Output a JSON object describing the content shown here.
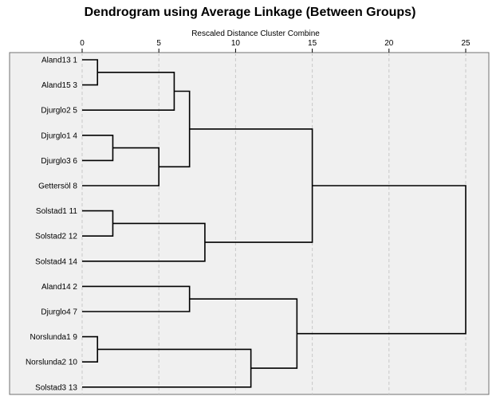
{
  "chart_data": {
    "type": "dendrogram",
    "title": "Dendrogram using Average Linkage (Between Groups)",
    "xlabel": "Rescaled Distance Cluster Combine",
    "xlim": [
      0,
      25
    ],
    "xticks": [
      0,
      5,
      10,
      15,
      20,
      25
    ],
    "grid": "vertical dashed",
    "leaves": [
      {
        "label": "Aland13",
        "case": 1
      },
      {
        "label": "Aland15",
        "case": 3
      },
      {
        "label": "Djurglo2",
        "case": 5
      },
      {
        "label": "Djurglo1",
        "case": 4
      },
      {
        "label": "Djurglo3",
        "case": 6
      },
      {
        "label": "Gettersöl",
        "case": 8
      },
      {
        "label": "Solstad1",
        "case": 11
      },
      {
        "label": "Solstad2",
        "case": 12
      },
      {
        "label": "Solstad4",
        "case": 14
      },
      {
        "label": "Aland14",
        "case": 2
      },
      {
        "label": "Djurglo4",
        "case": 7
      },
      {
        "label": "Norslunda1",
        "case": 9
      },
      {
        "label": "Norslunda2",
        "case": 10
      },
      {
        "label": "Solstad3",
        "case": 13
      }
    ],
    "merges": [
      {
        "id": "n1",
        "a": "L0",
        "b": "L1",
        "distance": 1
      },
      {
        "id": "n2",
        "a": "L11",
        "b": "L12",
        "distance": 1
      },
      {
        "id": "n3",
        "a": "L3",
        "b": "L4",
        "distance": 2
      },
      {
        "id": "n4",
        "a": "L6",
        "b": "L7",
        "distance": 2
      },
      {
        "id": "n5",
        "a": "n3",
        "b": "L5",
        "distance": 5
      },
      {
        "id": "n6",
        "a": "n1",
        "b": "L2",
        "distance": 6
      },
      {
        "id": "n7",
        "a": "n6",
        "b": "n5",
        "distance": 7
      },
      {
        "id": "n8",
        "a": "L9",
        "b": "L10",
        "distance": 7
      },
      {
        "id": "n9",
        "a": "n4",
        "b": "L8",
        "distance": 8
      },
      {
        "id": "n10",
        "a": "n2",
        "b": "L13",
        "distance": 11
      },
      {
        "id": "n11",
        "a": "n8",
        "b": "n10",
        "distance": 14
      },
      {
        "id": "n12",
        "a": "n7",
        "b": "n9",
        "distance": 15
      },
      {
        "id": "n13",
        "a": "n12",
        "b": "n11",
        "distance": 25
      }
    ]
  }
}
